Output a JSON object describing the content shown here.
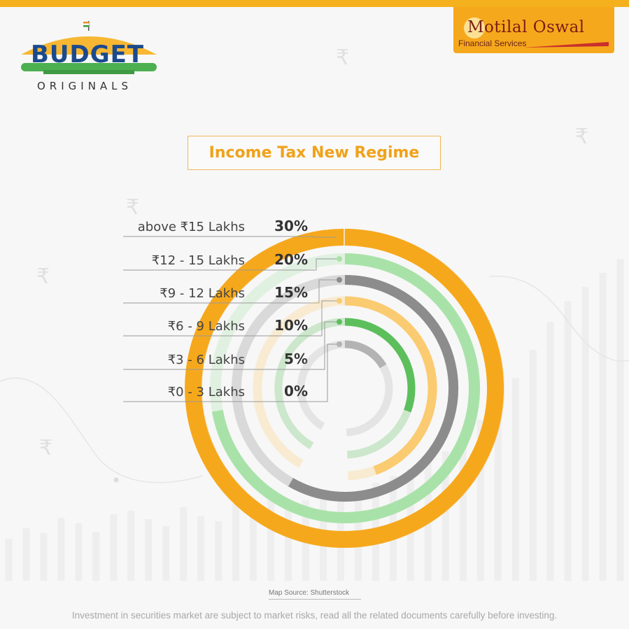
{
  "brand": {
    "name": "Motilal Oswal",
    "subtitle": "Financial Services",
    "color": "#f6a81c"
  },
  "logo": {
    "line1": "BUDGET",
    "line2": "ORIGINALS"
  },
  "background": {
    "rupee_symbol": "₹"
  },
  "chart_data": {
    "type": "radial-bar",
    "title": "Income Tax New Regime",
    "categories": [
      "above ₹15 Lakhs",
      "₹12 - 15 Lakhs",
      "₹9 - 12 Lakhs",
      "₹6 - 9 Lakhs",
      "₹3 - 6 Lakhs",
      "₹0 - 3 Lakhs"
    ],
    "values": [
      30,
      20,
      15,
      10,
      5,
      0
    ],
    "value_labels": [
      "30%",
      "20%",
      "15%",
      "10%",
      "5%",
      "0%"
    ],
    "colors": [
      "#f6a81c",
      "#a9e2a9",
      "#8c8c8c",
      "#fbcb72",
      "#5cbf5c",
      "#b3b3b3"
    ]
  },
  "footer": {
    "map_source": "Map Source: Shutterstock",
    "disclaimer": "Investment in securities market are subject to market risks, read all the related documents carefully before investing."
  }
}
